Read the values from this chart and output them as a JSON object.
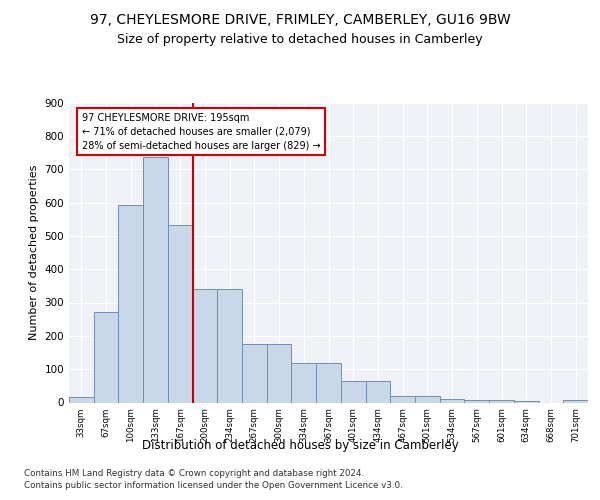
{
  "title1": "97, CHEYLESMORE DRIVE, FRIMLEY, CAMBERLEY, GU16 9BW",
  "title2": "Size of property relative to detached houses in Camberley",
  "xlabel": "Distribution of detached houses by size in Camberley",
  "ylabel": "Number of detached properties",
  "categories": [
    "33sqm",
    "67sqm",
    "100sqm",
    "133sqm",
    "167sqm",
    "200sqm",
    "234sqm",
    "267sqm",
    "300sqm",
    "334sqm",
    "367sqm",
    "401sqm",
    "434sqm",
    "467sqm",
    "501sqm",
    "534sqm",
    "567sqm",
    "601sqm",
    "634sqm",
    "668sqm",
    "701sqm"
  ],
  "values": [
    18,
    272,
    594,
    737,
    533,
    340,
    340,
    177,
    177,
    118,
    118,
    65,
    65,
    20,
    20,
    12,
    8,
    8,
    5,
    0,
    8
  ],
  "bar_color": "#c8d8e8",
  "bar_edge_color": "#7090b0",
  "vline_color": "#cc0000",
  "annotation_text": "97 CHEYLESMORE DRIVE: 195sqm\n← 71% of detached houses are smaller (2,079)\n28% of semi-detached houses are larger (829) →",
  "annotation_box_color": "#ffffff",
  "annotation_box_edge": "#cc0000",
  "footnote1": "Contains HM Land Registry data © Crown copyright and database right 2024.",
  "footnote2": "Contains public sector information licensed under the Open Government Licence v3.0.",
  "ylim": [
    0,
    900
  ],
  "yticks": [
    0,
    100,
    200,
    300,
    400,
    500,
    600,
    700,
    800,
    900
  ],
  "background_color": "#eef2f7",
  "grid_color": "#ffffff",
  "title1_fontsize": 10,
  "title2_fontsize": 9,
  "xlabel_fontsize": 8.5,
  "ylabel_fontsize": 8
}
